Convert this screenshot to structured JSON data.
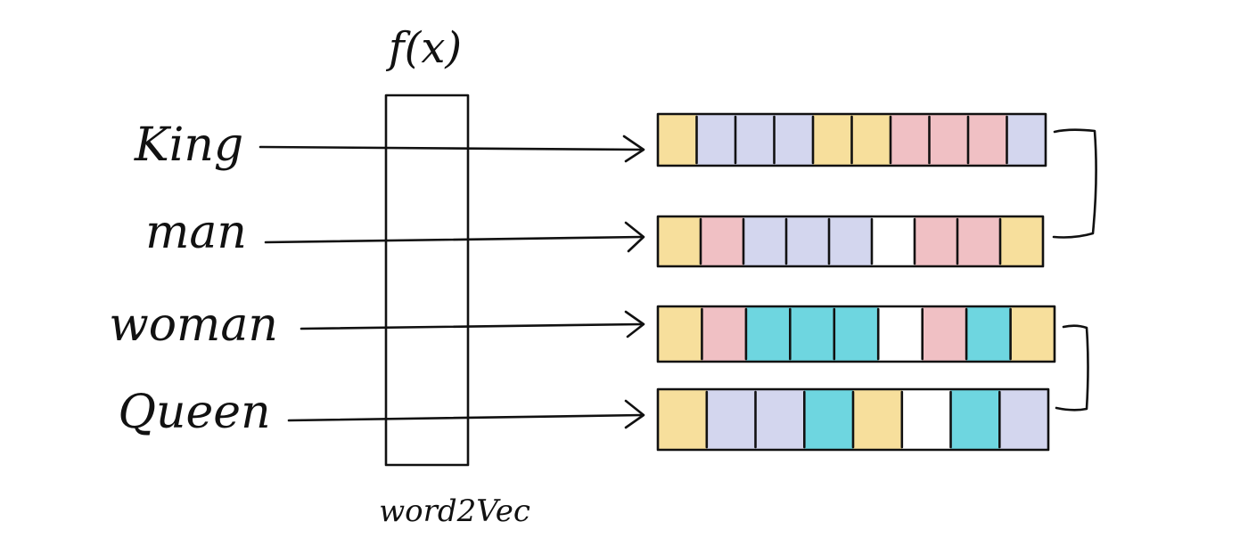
{
  "function_label": "f(x)",
  "model_caption": "word2Vec",
  "colors": {
    "yellow": "#f7df9c",
    "lavender": "#d3d6ee",
    "pink": "#f0c0c4",
    "cyan": "#6ed6e0",
    "white": "#ffffff"
  },
  "words": [
    {
      "label": "King",
      "cells": [
        "yellow",
        "lavender",
        "lavender",
        "lavender",
        "yellow",
        "yellow",
        "pink",
        "pink",
        "pink",
        "lavender"
      ]
    },
    {
      "label": "man",
      "cells": [
        "yellow",
        "pink",
        "lavender",
        "lavender",
        "lavender",
        "white",
        "pink",
        "pink",
        "yellow"
      ]
    },
    {
      "label": "woman",
      "cells": [
        "yellow",
        "pink",
        "cyan",
        "cyan",
        "cyan",
        "white",
        "pink",
        "cyan",
        "yellow"
      ]
    },
    {
      "label": "Queen",
      "cells": [
        "yellow",
        "lavender",
        "lavender",
        "cyan",
        "yellow",
        "white",
        "cyan",
        "lavender"
      ]
    }
  ]
}
